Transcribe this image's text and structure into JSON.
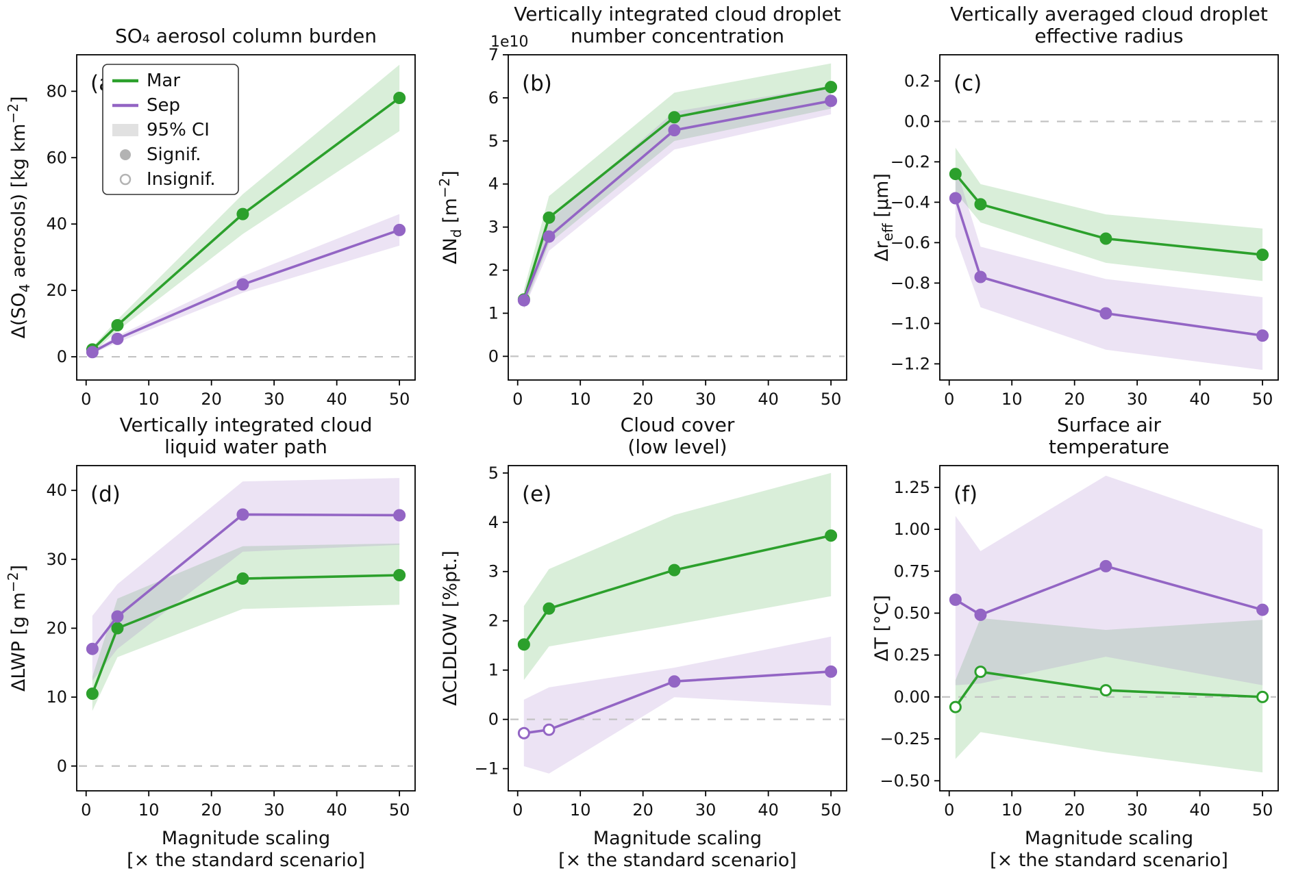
{
  "figure": {
    "background": "#ffffff",
    "colors": {
      "mar": "#2ca02c",
      "sep": "#9365c4",
      "ci_patch": "#e1e1e1",
      "sig_marker": "#b3b3b3",
      "zero_line": "#c3c3c3",
      "axis": "#000000",
      "text": "#111111",
      "band_opacity": 0.18
    },
    "legend": {
      "items": [
        {
          "swatch": "line",
          "color": "mar",
          "label": "Mar"
        },
        {
          "swatch": "line",
          "color": "sep",
          "label": "Sep"
        },
        {
          "swatch": "patch",
          "color": "ci_patch",
          "label": "95% CI"
        },
        {
          "swatch": "dot_filled",
          "color": "sig_marker",
          "label": "Signif."
        },
        {
          "swatch": "dot_open",
          "color": "sig_marker",
          "label": "Insignif."
        }
      ]
    },
    "xlabel_lines": [
      "Magnitude scaling",
      "[× the standard scenario]"
    ]
  },
  "chart_data": [
    {
      "type": "line",
      "panel_label": "(a)",
      "title_lines": [
        "SO₄ aerosol column burden"
      ],
      "ylabel_parts": [
        {
          "text": "Δ(SO"
        },
        {
          "text": "4",
          "script": "sub"
        },
        {
          "text": " aerosols) [kg km"
        },
        {
          "text": "−2",
          "script": "sup"
        },
        {
          "text": "]"
        }
      ],
      "x": [
        1,
        5,
        25,
        50
      ],
      "xlim": [
        -1.5,
        52.5
      ],
      "x_tick_values": [
        0,
        10,
        20,
        30,
        40,
        50
      ],
      "x_tick_labels": [
        "0",
        "10",
        "20",
        "30",
        "40",
        "50"
      ],
      "ylim": [
        -7,
        91
      ],
      "y_tick_values": [
        0,
        20,
        40,
        60,
        80
      ],
      "y_tick_labels": [
        "0",
        "20",
        "40",
        "60",
        "80"
      ],
      "zero_line": true,
      "show_xlabel": false,
      "show_legend": true,
      "series": [
        {
          "name": "Mar",
          "color_key": "mar",
          "values": [
            2.2,
            9.5,
            43.0,
            78.0
          ],
          "ci_low": [
            1.2,
            7.8,
            37.0,
            68.0
          ],
          "ci_high": [
            2.9,
            11.2,
            49.0,
            88.0
          ],
          "significant": [
            true,
            true,
            true,
            true
          ]
        },
        {
          "name": "Sep",
          "color_key": "sep",
          "values": [
            1.4,
            5.4,
            21.8,
            38.2
          ],
          "ci_low": [
            0.9,
            4.3,
            19.3,
            33.5
          ],
          "ci_high": [
            2.1,
            6.3,
            24.3,
            43.0
          ],
          "significant": [
            true,
            true,
            true,
            true
          ]
        }
      ]
    },
    {
      "type": "line",
      "panel_label": "(b)",
      "title_lines": [
        "Vertically integrated cloud droplet",
        "number concentration"
      ],
      "ylabel_parts": [
        {
          "text": "ΔN"
        },
        {
          "text": "d",
          "script": "sub"
        },
        {
          "text": " [m"
        },
        {
          "text": "−2",
          "script": "sup"
        },
        {
          "text": "]"
        }
      ],
      "offset_label": "1e10",
      "x": [
        1,
        5,
        25,
        50
      ],
      "xlim": [
        -1.5,
        52.5
      ],
      "x_tick_values": [
        0,
        10,
        20,
        30,
        40,
        50
      ],
      "x_tick_labels": [
        "0",
        "10",
        "20",
        "30",
        "40",
        "50"
      ],
      "ylim": [
        -0.55,
        7.0
      ],
      "y_tick_values": [
        0,
        1,
        2,
        3,
        4,
        5,
        6,
        7
      ],
      "y_tick_labels": [
        "0",
        "1",
        "2",
        "3",
        "4",
        "5",
        "6",
        "7"
      ],
      "zero_line": true,
      "show_xlabel": false,
      "show_legend": false,
      "series": [
        {
          "name": "Mar",
          "color_key": "mar",
          "values": [
            1.32,
            3.22,
            5.55,
            6.25
          ],
          "ci_low": [
            1.12,
            2.62,
            5.0,
            5.75
          ],
          "ci_high": [
            1.55,
            3.72,
            6.12,
            6.8
          ],
          "significant": [
            true,
            true,
            true,
            true
          ]
        },
        {
          "name": "Sep",
          "color_key": "sep",
          "values": [
            1.3,
            2.78,
            5.25,
            5.93
          ],
          "ci_low": [
            1.1,
            2.45,
            4.8,
            5.62
          ],
          "ci_high": [
            1.5,
            3.15,
            5.68,
            6.28
          ],
          "significant": [
            true,
            true,
            true,
            true
          ]
        }
      ]
    },
    {
      "type": "line",
      "panel_label": "(c)",
      "title_lines": [
        "Vertically averaged cloud droplet",
        "effective radius"
      ],
      "ylabel_parts": [
        {
          "text": "Δr"
        },
        {
          "text": "eff",
          "script": "sub"
        },
        {
          "text": " [μm]"
        }
      ],
      "x": [
        1,
        5,
        25,
        50
      ],
      "xlim": [
        -1.5,
        52.5
      ],
      "x_tick_values": [
        0,
        10,
        20,
        30,
        40,
        50
      ],
      "x_tick_labels": [
        "0",
        "10",
        "20",
        "30",
        "40",
        "50"
      ],
      "ylim": [
        -1.28,
        0.33
      ],
      "y_tick_values": [
        0.2,
        0.0,
        -0.2,
        -0.4,
        -0.6,
        -0.8,
        -1.0,
        -1.2
      ],
      "y_tick_labels": [
        "0.2",
        "0.0",
        "−0.2",
        "−0.4",
        "−0.6",
        "−0.8",
        "−1.0",
        "−1.2"
      ],
      "zero_line": true,
      "show_xlabel": false,
      "show_legend": false,
      "series": [
        {
          "name": "Mar",
          "color_key": "mar",
          "values": [
            -0.26,
            -0.41,
            -0.58,
            -0.66
          ],
          "ci_low": [
            -0.35,
            -0.5,
            -0.7,
            -0.79
          ],
          "ci_high": [
            -0.13,
            -0.31,
            -0.46,
            -0.53
          ],
          "significant": [
            true,
            true,
            true,
            true
          ]
        },
        {
          "name": "Sep",
          "color_key": "sep",
          "values": [
            -0.38,
            -0.77,
            -0.95,
            -1.06
          ],
          "ci_low": [
            -0.57,
            -0.92,
            -1.13,
            -1.23
          ],
          "ci_high": [
            -0.22,
            -0.62,
            -0.78,
            -0.87
          ],
          "significant": [
            true,
            true,
            true,
            true
          ]
        }
      ]
    },
    {
      "type": "line",
      "panel_label": "(d)",
      "title_lines": [
        "Vertically integrated cloud",
        "liquid water path"
      ],
      "ylabel_parts": [
        {
          "text": "ΔLWP [g m"
        },
        {
          "text": "−2",
          "script": "sup"
        },
        {
          "text": "]"
        }
      ],
      "x": [
        1,
        5,
        25,
        50
      ],
      "xlim": [
        -1.5,
        52.5
      ],
      "x_tick_values": [
        0,
        10,
        20,
        30,
        40,
        50
      ],
      "x_tick_labels": [
        "0",
        "10",
        "20",
        "30",
        "40",
        "50"
      ],
      "ylim": [
        -3.6,
        43.6
      ],
      "y_tick_values": [
        0,
        10,
        20,
        30,
        40
      ],
      "y_tick_labels": [
        "0",
        "10",
        "20",
        "30",
        "40"
      ],
      "zero_line": true,
      "show_xlabel": true,
      "show_legend": false,
      "series": [
        {
          "name": "Mar",
          "color_key": "mar",
          "values": [
            10.5,
            20.0,
            27.2,
            27.7
          ],
          "ci_low": [
            8.0,
            15.8,
            22.8,
            23.4
          ],
          "ci_high": [
            13.0,
            24.3,
            31.9,
            32.3
          ],
          "significant": [
            true,
            true,
            true,
            true
          ]
        },
        {
          "name": "Sep",
          "color_key": "sep",
          "values": [
            17.0,
            21.7,
            36.5,
            36.4
          ],
          "ci_low": [
            12.4,
            17.0,
            31.1,
            32.1
          ],
          "ci_high": [
            21.8,
            26.4,
            41.3,
            41.8
          ],
          "significant": [
            true,
            true,
            true,
            true
          ]
        }
      ]
    },
    {
      "type": "line",
      "panel_label": "(e)",
      "title_lines": [
        "Cloud cover",
        "(low level)"
      ],
      "ylabel_parts": [
        {
          "text": "ΔCLDLOW [%pt.]"
        }
      ],
      "x": [
        1,
        5,
        25,
        50
      ],
      "xlim": [
        -1.5,
        52.5
      ],
      "x_tick_values": [
        0,
        10,
        20,
        30,
        40,
        50
      ],
      "x_tick_labels": [
        "0",
        "10",
        "20",
        "30",
        "40",
        "50"
      ],
      "ylim": [
        -1.45,
        5.15
      ],
      "y_tick_values": [
        -1,
        0,
        1,
        2,
        3,
        4,
        5
      ],
      "y_tick_labels": [
        "−1",
        "0",
        "1",
        "2",
        "3",
        "4",
        "5"
      ],
      "zero_line": true,
      "show_xlabel": true,
      "show_legend": false,
      "series": [
        {
          "name": "Mar",
          "color_key": "mar",
          "values": [
            1.52,
            2.25,
            3.03,
            3.73
          ],
          "ci_low": [
            0.8,
            1.48,
            1.92,
            2.5
          ],
          "ci_high": [
            2.3,
            3.05,
            4.15,
            5.0
          ],
          "significant": [
            true,
            true,
            true,
            true
          ]
        },
        {
          "name": "Sep",
          "color_key": "sep",
          "values": [
            -0.28,
            -0.21,
            0.77,
            0.97
          ],
          "ci_low": [
            -0.95,
            -1.1,
            0.45,
            0.28
          ],
          "ci_high": [
            0.4,
            0.65,
            1.05,
            1.68
          ],
          "significant": [
            false,
            false,
            true,
            true
          ]
        }
      ]
    },
    {
      "type": "line",
      "panel_label": "(f)",
      "title_lines": [
        "Surface air",
        "temperature"
      ],
      "ylabel_parts": [
        {
          "text": "ΔT [°C]"
        }
      ],
      "x": [
        1,
        5,
        25,
        50
      ],
      "xlim": [
        -1.5,
        52.5
      ],
      "x_tick_values": [
        0,
        10,
        20,
        30,
        40,
        50
      ],
      "x_tick_labels": [
        "0",
        "10",
        "20",
        "30",
        "40",
        "50"
      ],
      "ylim": [
        -0.56,
        1.38
      ],
      "y_tick_values": [
        1.25,
        1.0,
        0.75,
        0.5,
        0.25,
        0.0,
        -0.25,
        -0.5
      ],
      "y_tick_labels": [
        "1.25",
        "1.00",
        "0.75",
        "0.50",
        "0.25",
        "0.00",
        "−0.25",
        "−0.50"
      ],
      "zero_line": true,
      "show_xlabel": true,
      "show_legend": false,
      "series": [
        {
          "name": "Mar",
          "color_key": "mar",
          "values": [
            -0.06,
            0.15,
            0.04,
            0.0
          ],
          "ci_low": [
            -0.37,
            -0.21,
            -0.33,
            -0.45
          ],
          "ci_high": [
            0.1,
            0.47,
            0.4,
            0.46
          ],
          "significant": [
            false,
            false,
            false,
            false
          ]
        },
        {
          "name": "Sep",
          "color_key": "sep",
          "values": [
            0.58,
            0.49,
            0.78,
            0.52
          ],
          "ci_low": [
            0.07,
            0.08,
            0.24,
            0.07
          ],
          "ci_high": [
            1.08,
            0.87,
            1.32,
            1.0
          ],
          "significant": [
            true,
            true,
            true,
            true
          ]
        }
      ]
    }
  ]
}
